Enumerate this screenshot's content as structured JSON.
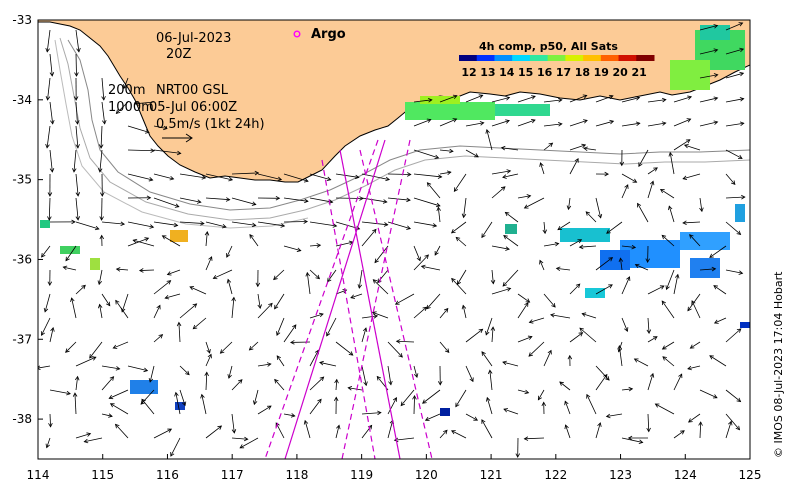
{
  "map": {
    "lon_ticks": [
      "114",
      "115",
      "116",
      "117",
      "118",
      "119",
      "120",
      "121",
      "122",
      "123",
      "124",
      "125"
    ],
    "lat_ticks": [
      "-33",
      "-34",
      "-35",
      "-36",
      "-37",
      "-38"
    ],
    "lon_range": [
      114,
      125
    ],
    "lat_range": [
      -38.5,
      -33
    ]
  },
  "annotations": {
    "date": "06-Jul-2023",
    "time": "20Z",
    "contour_200m": "200m",
    "contour_1000m": "1000m",
    "product": "NRT00 GSL",
    "product_time": "05-Jul 06:00Z",
    "scale_arrow": "0.5m/s (1kt 24h)",
    "argo_label": "Argo"
  },
  "legend": {
    "title": "4h comp, p50, All Sats",
    "ticks": [
      "12",
      "13",
      "14",
      "15",
      "16",
      "17",
      "18",
      "19",
      "20",
      "21"
    ],
    "colors": [
      "#000080",
      "#0030ff",
      "#0090ff",
      "#00d8ff",
      "#30e8a0",
      "#80f040",
      "#d8f000",
      "#ffc000",
      "#ff6000",
      "#d01000",
      "#800000"
    ]
  },
  "credit": "© IMOS 08-Jul-2023 17:04 Hobart",
  "colors": {
    "land": "#fccb96",
    "track": "#cc00cc",
    "argo": "#ff00ff"
  }
}
